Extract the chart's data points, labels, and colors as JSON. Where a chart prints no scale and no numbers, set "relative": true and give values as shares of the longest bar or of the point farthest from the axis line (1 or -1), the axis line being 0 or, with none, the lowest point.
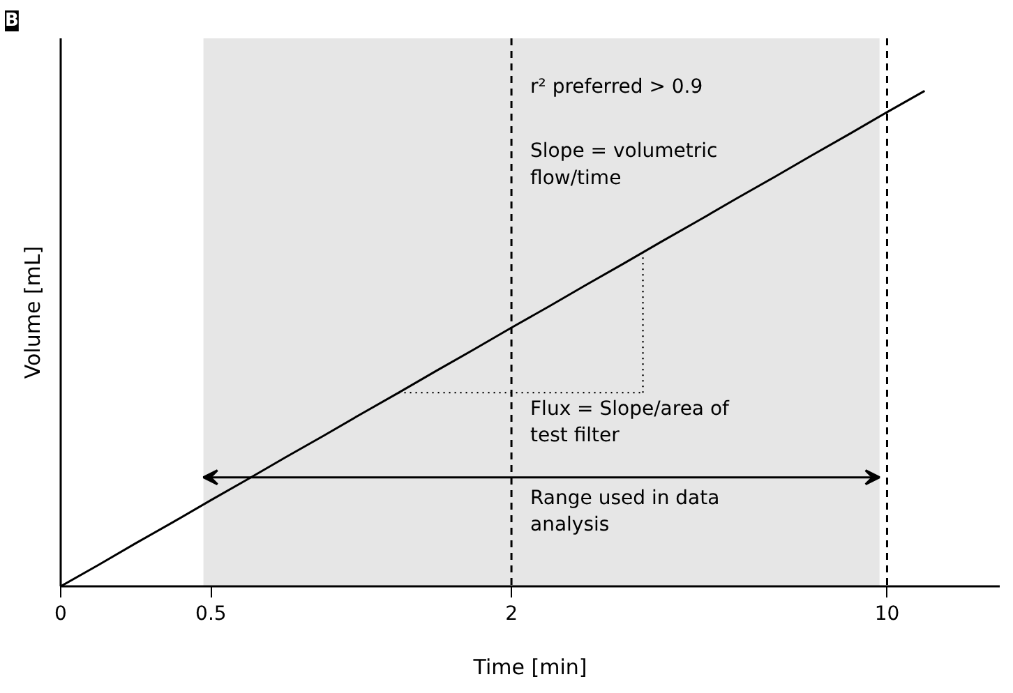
{
  "chart_data": {
    "type": "line",
    "relative": true,
    "xlabel": "Time [min]",
    "ylabel": "Volume [mL]",
    "categories": [
      "0",
      null,
      null,
      null,
      "0.5",
      null,
      null,
      null,
      null,
      null,
      null,
      null,
      "2",
      null,
      null,
      null,
      null,
      null,
      null,
      null,
      null,
      null,
      "10",
      null,
      null,
      null
    ],
    "tick_labels": "x",
    "grid": false,
    "series": [
      {
        "color": "#000000",
        "values": [
          0,
          0.043,
          0.087,
          0.13,
          0.174,
          0.217,
          0.261,
          0.304,
          0.348,
          0.391,
          0.435,
          0.478,
          0.522,
          0.565,
          0.609,
          0.652,
          0.696,
          0.739,
          0.783,
          0.826,
          0.87,
          0.913,
          0.957,
          1,
          null,
          null
        ],
        "line_style": "solid"
      }
    ],
    "ref_lines": [
      {
        "axis": "x",
        "value": "2",
        "line_style": "dashed",
        "color": "#000000"
      },
      {
        "axis": "x",
        "value": "10",
        "line_style": "dashed",
        "color": "#000000"
      }
    ],
    "bands": [
      {
        "axis": "x",
        "from": "0.5",
        "to": "10",
        "color": "#e6e6e6"
      }
    ],
    "annotations": [
      "B",
      "r² preferred > 0.9",
      "Slope = volumetric\nflow/time",
      "Flux = Slope/area of\ntest filter",
      "Range used in data\nanalysis"
    ]
  }
}
